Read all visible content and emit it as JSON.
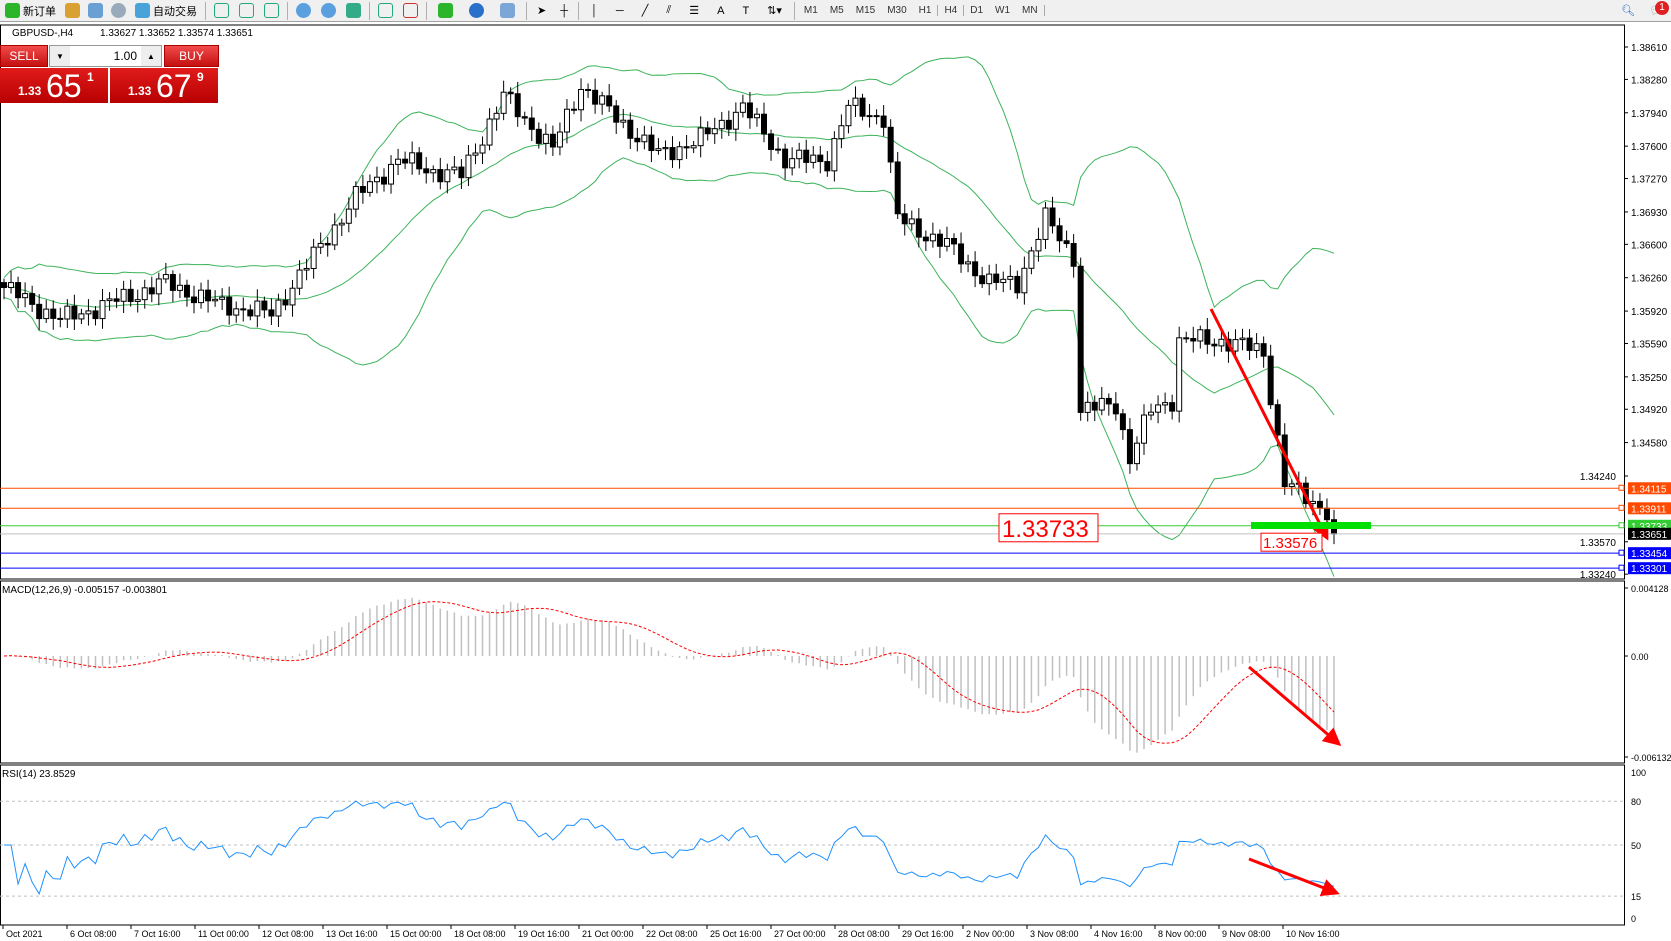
{
  "toolbar": {
    "new_order": "新订单",
    "auto_trading": "自动交易",
    "timeframes": [
      "M1",
      "M5",
      "M15",
      "M30",
      "H1",
      "H4",
      "D1",
      "W1",
      "MN"
    ],
    "active_timeframe": "H4",
    "notification_count": "1",
    "icons": [
      "new-order-icon",
      "history-icon",
      "terminal-icon",
      "signal-icon",
      "autotrade-icon",
      "bar-chart-icon",
      "candle-chart-icon",
      "line-chart-icon",
      "zoom-in-icon",
      "zoom-out-icon",
      "tile-icon",
      "autoscroll-icon",
      "chart-shift-icon",
      "indicators-icon",
      "periods-icon",
      "templates-icon",
      "cursor-icon",
      "crosshair-icon",
      "vertical-line-icon",
      "horizontal-line-icon",
      "trendline-icon",
      "equidistant-channel-icon",
      "fibonacci-icon",
      "text-icon",
      "text-label-icon",
      "arrows-icon",
      "search-icon",
      "chat-icon"
    ]
  },
  "header": {
    "symbol": "GBPUSD-,H4",
    "ohlc": "1.33627 1.33652 1.33574 1.33651"
  },
  "trade_panel": {
    "sell": "SELL",
    "buy": "BUY",
    "lot": "1.00",
    "sell_prefix": "1.33",
    "sell_big": "65",
    "sell_pip": "1",
    "buy_prefix": "1.33",
    "buy_big": "67",
    "buy_pip": "9"
  },
  "price_axis": {
    "ticks": [
      "1.38610",
      "1.38280",
      "1.37940",
      "1.37600",
      "1.37270",
      "1.36930",
      "1.36600",
      "1.36260",
      "1.35920",
      "1.35590",
      "1.35250",
      "1.34920",
      "1.34580",
      "1.34240",
      "1.33570",
      "1.33240"
    ]
  },
  "levels": [
    {
      "price": "1.34115",
      "color": "#ff4a00"
    },
    {
      "price": "1.33911",
      "color": "#ff4a00"
    },
    {
      "price": "1.33733",
      "color": "#33cc33"
    },
    {
      "price": "1.33651",
      "color": "#000000",
      "bid": true
    },
    {
      "price": "1.33454",
      "color": "#0000ff"
    },
    {
      "price": "1.33301",
      "color": "#0000ff"
    }
  ],
  "annotations": {
    "big_label": "1.33733",
    "small_label": "1.33576",
    "arrow_color": "#ff0000",
    "zone_color": "#00e000"
  },
  "macd": {
    "label": "MACD(12,26,9) -0.005157 -0.003801",
    "ticks": [
      "0.004128",
      "0.00",
      "-0.006132"
    ]
  },
  "rsi": {
    "label": "RSI(14) 23.8529",
    "ticks": [
      "100",
      "80",
      "50",
      "15",
      "0"
    ]
  },
  "time_axis": [
    "Oct 2021",
    "6 Oct 08:00",
    "7 Oct 16:00",
    "11 Oct 00:00",
    "12 Oct 08:00",
    "13 Oct 16:00",
    "15 Oct 00:00",
    "18 Oct 08:00",
    "19 Oct 16:00",
    "21 Oct 00:00",
    "22 Oct 08:00",
    "25 Oct 16:00",
    "27 Oct 00:00",
    "28 Oct 08:00",
    "29 Oct 16:00",
    "2 Nov 00:00",
    "3 Nov 08:00",
    "4 Nov 16:00",
    "8 Nov 00:00",
    "9 Nov 08:00",
    "10 Nov 16:00"
  ],
  "chart_data": {
    "type": "candlestick",
    "symbol": "GBPUSD",
    "timeframe": "H4",
    "ylim": [
      1.3324,
      1.3875
    ],
    "bars": 190,
    "close_path": [
      [
        0,
        1.3616
      ],
      [
        8,
        1.3583
      ],
      [
        15,
        1.36
      ],
      [
        23,
        1.3621
      ],
      [
        30,
        1.36
      ],
      [
        38,
        1.3589
      ],
      [
        44,
        1.3648
      ],
      [
        50,
        1.3708
      ],
      [
        56,
        1.3746
      ],
      [
        61,
        1.3735
      ],
      [
        65,
        1.373
      ],
      [
        71,
        1.3811
      ],
      [
        78,
        1.3757
      ],
      [
        82,
        1.3822
      ],
      [
        87,
        1.3789
      ],
      [
        93,
        1.3751
      ],
      [
        99,
        1.3767
      ],
      [
        105,
        1.38
      ],
      [
        111,
        1.3746
      ],
      [
        117,
        1.3746
      ],
      [
        120,
        1.38
      ],
      [
        125,
        1.3789
      ],
      [
        127,
        1.3686
      ],
      [
        134,
        1.3659
      ],
      [
        140,
        1.3621
      ],
      [
        144,
        1.3621
      ],
      [
        148,
        1.3686
      ],
      [
        152,
        1.3648
      ],
      [
        153,
        1.3491
      ],
      [
        158,
        1.3497
      ],
      [
        160,
        1.3442
      ],
      [
        163,
        1.3491
      ],
      [
        166,
        1.3502
      ],
      [
        167,
        1.3562
      ],
      [
        173,
        1.3562
      ],
      [
        179,
        1.3551
      ],
      [
        182,
        1.3416
      ],
      [
        187,
        1.3394
      ],
      [
        189,
        1.3365
      ]
    ],
    "indicators": [
      "Bollinger Bands(20,2)",
      "MACD(12,26,9)",
      "RSI(14)"
    ],
    "rsi_levels": [
      80,
      50,
      15
    ]
  }
}
